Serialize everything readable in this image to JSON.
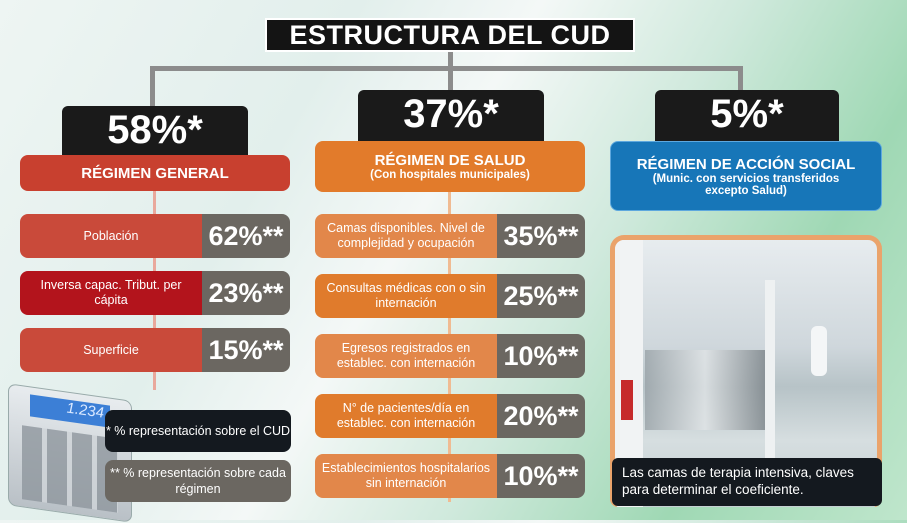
{
  "title": "ESTRUCTURA DEL CUD",
  "columns": [
    {
      "percent": "58%*",
      "header": "RÉGIMEN GENERAL",
      "subheader": "",
      "color": "#c8402f",
      "items": [
        {
          "label": "Población",
          "value": "62%**",
          "color": "#c94a3a"
        },
        {
          "label": "Inversa capac. Tribut. per cápita",
          "value": "23%**",
          "color": "#b3141c"
        },
        {
          "label": "Superficie",
          "value": "15%**",
          "color": "#c94a3a"
        }
      ]
    },
    {
      "percent": "37%*",
      "header": "RÉGIMEN DE SALUD",
      "subheader": "(Con hospitales municipales)",
      "color": "#e27b2b",
      "items": [
        {
          "label": "Camas disponibles. Nivel de complejidad y ocupación",
          "value": "35%**",
          "color": "#e2874a"
        },
        {
          "label": "Consultas médicas con o sin internación",
          "value": "25%**",
          "color": "#e07b2c"
        },
        {
          "label": "Egresos registrados en establec. con internación",
          "value": "10%**",
          "color": "#e2874a"
        },
        {
          "label": "N° de pacientes/día en establec. con internación",
          "value": "20%**",
          "color": "#e07b2c"
        },
        {
          "label": "Establecimientos hospitalarios sin internación",
          "value": "10%**",
          "color": "#e2874a"
        }
      ]
    },
    {
      "percent": "5%*",
      "header": "RÉGIMEN DE ACCIÓN SOCIAL",
      "subheader": "(Munic. con servicios transferidos excepto Salud)",
      "color": "#1776b8",
      "items": []
    }
  ],
  "notes": {
    "single": "* % representación sobre el CUD",
    "double": "** % representación sobre cada régimen"
  },
  "calculator_display": "1.234",
  "photo_caption": "Las camas de terapia intensiva, claves para determinar el coeficiente."
}
